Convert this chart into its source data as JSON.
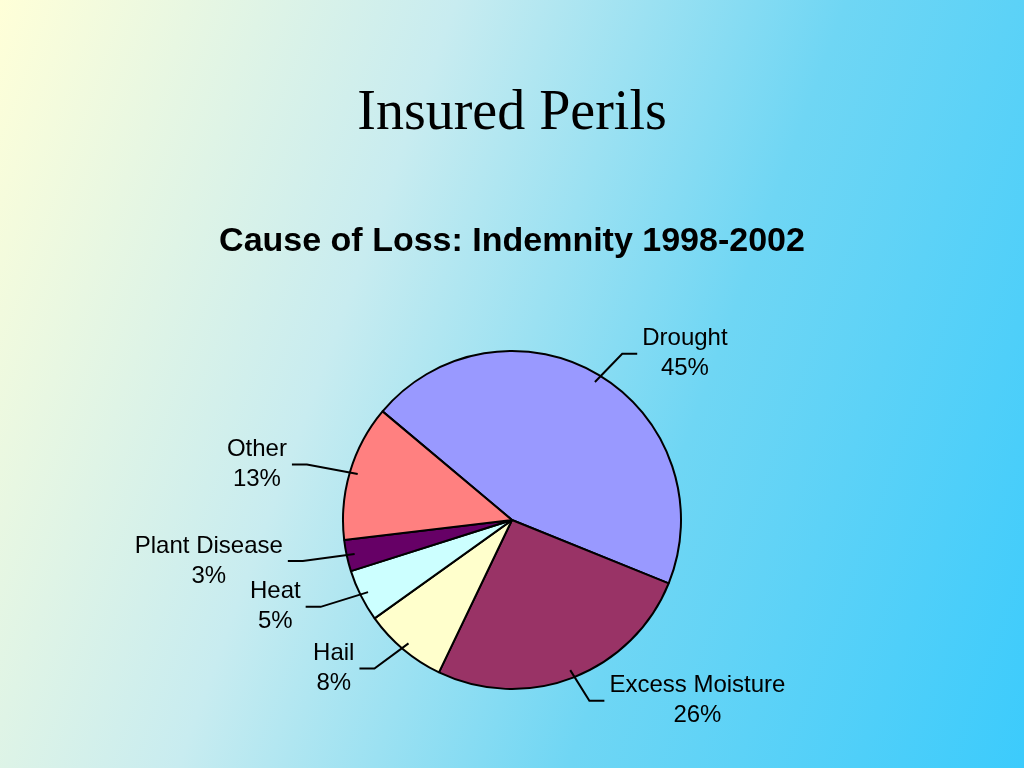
{
  "chart_data": {
    "type": "pie",
    "title": "Insured Perils",
    "subtitle": "Cause of Loss: Indemnity 1998-2002",
    "categories": [
      "Drought",
      "Excess Moisture",
      "Hail",
      "Heat",
      "Plant Disease",
      "Other"
    ],
    "values": [
      45,
      26,
      8,
      5,
      3,
      13
    ],
    "colors": [
      "#9999ff",
      "#993366",
      "#ffffcc",
      "#ccffff",
      "#660066",
      "#ff8080"
    ],
    "value_labels": [
      "45%",
      "26%",
      "8%",
      "5%",
      "3%",
      "13%"
    ],
    "legend": false
  }
}
